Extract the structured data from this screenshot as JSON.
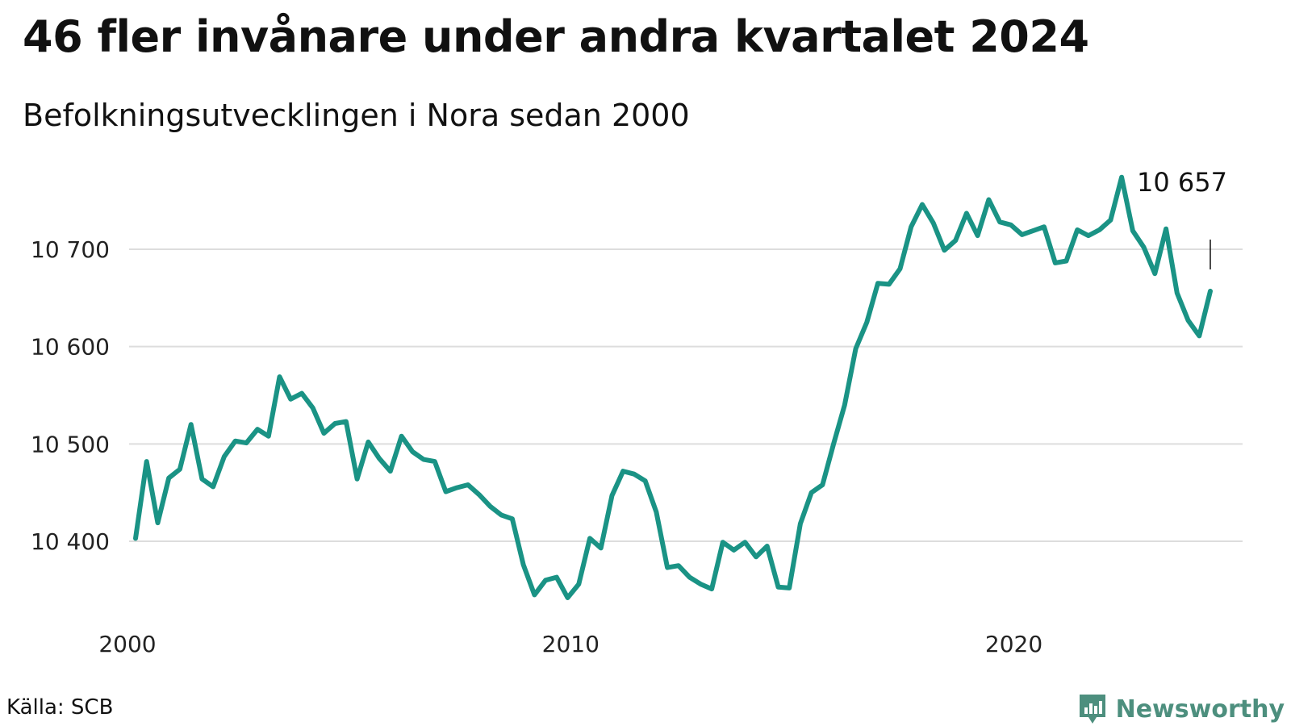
{
  "title": "46 fler invånare under andra kvartalet 2024",
  "subtitle": "Befolkningsutvecklingen i Nora sedan 2000",
  "source": "Källa: SCB",
  "brand": "Newsworthy",
  "colors": {
    "line": "#1a9385",
    "grid": "#dddddd",
    "brand": "#4d8f7e"
  },
  "chart_data": {
    "type": "line",
    "title": "46 fler invånare under andra kvartalet 2024",
    "subtitle": "Befolkningsutvecklingen i Nora sedan 2000",
    "xlabel": "",
    "ylabel": "",
    "frequency": "quarterly",
    "x_start": "2000 Q1",
    "x_end": "2024 Q2",
    "xlim": [
      "2000 Q1",
      "2024 Q2"
    ],
    "ylim": [
      10340,
      10780
    ],
    "grid": true,
    "legend": "none",
    "x_ticks": [
      {
        "value": "2000 Q1",
        "label": "2000"
      },
      {
        "value": "2010 Q1",
        "label": "2010"
      },
      {
        "value": "2020 Q1",
        "label": "2020"
      }
    ],
    "y_ticks": [
      {
        "value": 10400,
        "label": "10 400"
      },
      {
        "value": 10500,
        "label": "10 500"
      },
      {
        "value": 10600,
        "label": "10 600"
      },
      {
        "value": 10700,
        "label": "10 700"
      }
    ],
    "values": [
      10403,
      10482,
      10419,
      10465,
      10474,
      10520,
      10464,
      10456,
      10487,
      10503,
      10501,
      10515,
      10508,
      10569,
      10546,
      10552,
      10537,
      10511,
      10521,
      10523,
      10464,
      10502,
      10485,
      10472,
      10508,
      10492,
      10484,
      10482,
      10451,
      10455,
      10458,
      10448,
      10436,
      10427,
      10423,
      10376,
      10345,
      10360,
      10363,
      10342,
      10356,
      10403,
      10393,
      10447,
      10472,
      10469,
      10462,
      10430,
      10373,
      10375,
      10363,
      10356,
      10351,
      10399,
      10391,
      10399,
      10384,
      10395,
      10353,
      10352,
      10418,
      10450,
      10458,
      10500,
      10540,
      10598,
      10625,
      10665,
      10664,
      10680,
      10723,
      10746,
      10727,
      10699,
      10709,
      10737,
      10714,
      10751,
      10728,
      10725,
      10715,
      10719,
      10723,
      10686,
      10688,
      10720,
      10714,
      10720,
      10730,
      10774,
      10719,
      10702,
      10675,
      10721,
      10655,
      10627,
      10611,
      10657
    ],
    "annotations": [
      {
        "x": "2024 Q2",
        "y": 10657,
        "text": "10 657"
      }
    ]
  }
}
